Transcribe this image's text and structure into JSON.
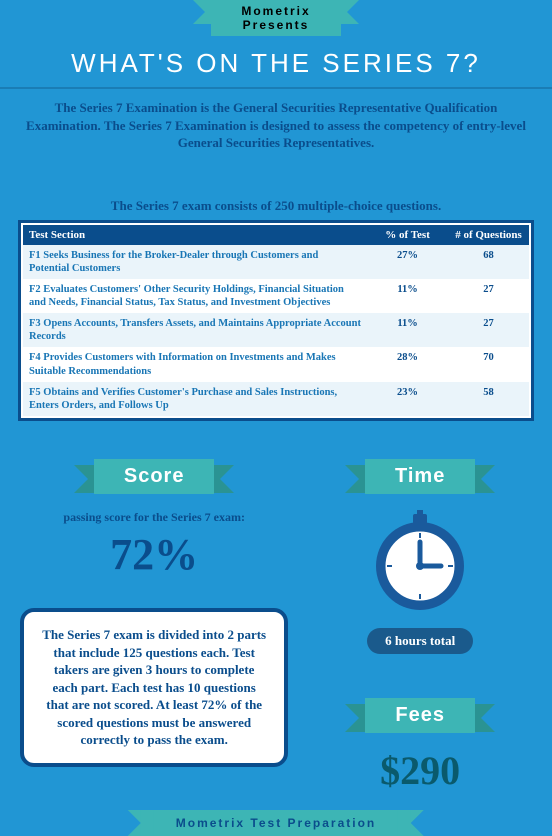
{
  "brand_top": "Mometrix",
  "brand_sub": "Presents",
  "title": "What's On The Series 7?",
  "subtitle": "The Series 7 Examination is the General Securities Representative Qualification Examination. The Series 7 Examination is designed to assess the competency of entry-level General Securities Representatives.",
  "exam_note": "The Series 7 exam consists of 250 multiple-choice questions.",
  "table": {
    "headers": [
      "Test Section",
      "% of Test",
      "# of Questions"
    ],
    "rows": [
      {
        "code": "F1",
        "desc": "Seeks Business for the Broker-Dealer through Customers and Potential Customers",
        "pct": "27%",
        "num": "68"
      },
      {
        "code": "F2",
        "desc": "Evaluates Customers' Other Security Holdings, Financial Situation and Needs, Financial Status, Tax Status, and Investment Objectives",
        "pct": "11%",
        "num": "27"
      },
      {
        "code": "F3",
        "desc": "Opens Accounts, Transfers Assets, and Maintains Appropriate Account Records",
        "pct": "11%",
        "num": "27"
      },
      {
        "code": "F4",
        "desc": "Provides Customers with Information on Investments and Makes Suitable Recommendations",
        "pct": "28%",
        "num": "70"
      },
      {
        "code": "F5",
        "desc": "Obtains and Verifies Customer's Purchase and Sales Instructions, Enters Orders, and Follows Up",
        "pct": "23%",
        "num": "58"
      }
    ]
  },
  "score": {
    "label": "Score",
    "caption": "passing score for the Series 7 exam:",
    "value": "72%"
  },
  "time": {
    "label": "Time",
    "total": "6 hours total",
    "clock_color": "#1a5a9c",
    "clock_face": "#ffffff"
  },
  "info_box": "The Series 7 exam is divided into 2 parts that include 125 questions each. Test takers are given 3 hours to complete each part. Each test has 10 questions that are not scored. At least 72% of the scored questions must be answered correctly to pass the exam.",
  "fees": {
    "label": "Fees",
    "value": "$290"
  },
  "brand_bottom": "Mometrix Test Preparation",
  "colors": {
    "bg": "#2196d4",
    "teal": "#3db5b5",
    "navy": "#0a4d8c",
    "link_blue": "#1976b5"
  }
}
